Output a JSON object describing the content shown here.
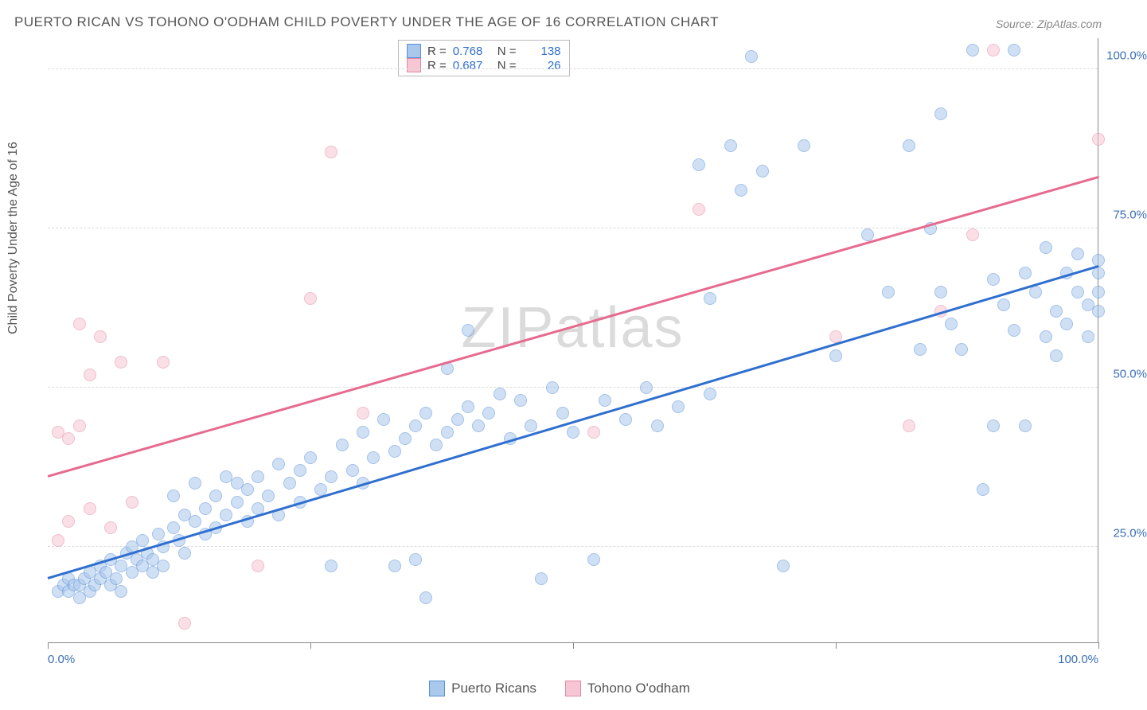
{
  "title": "PUERTO RICAN VS TOHONO O'ODHAM CHILD POVERTY UNDER THE AGE OF 16 CORRELATION CHART",
  "source": "Source: ZipAtlas.com",
  "ylabel": "Child Poverty Under the Age of 16",
  "watermark": "ZIPatlas",
  "chart": {
    "type": "scatter",
    "xlim": [
      0,
      100
    ],
    "ylim": [
      10,
      105
    ],
    "ytick_labels": [
      "25.0%",
      "50.0%",
      "75.0%",
      "100.0%"
    ],
    "ytick_values": [
      25,
      50,
      75,
      100
    ],
    "xtick_values": [
      0,
      25,
      50,
      75,
      100
    ],
    "xtick_labels_left": "0.0%",
    "xtick_labels_right": "100.0%",
    "background_color": "#ffffff",
    "grid_color": "#dddddd",
    "point_radius": 8,
    "point_opacity": 0.55,
    "point_border_width": 1.2
  },
  "series": [
    {
      "name": "Puerto Ricans",
      "color_fill": "#a9c8ec",
      "color_border": "#5a8fd6",
      "R": "0.768",
      "N": "138",
      "trend": {
        "x1": 0,
        "y1": 20,
        "x2": 100,
        "y2": 69,
        "color": "#2f6fd0",
        "width": 2.5
      },
      "points": [
        [
          1,
          18
        ],
        [
          1.5,
          19
        ],
        [
          2,
          18
        ],
        [
          2,
          20
        ],
        [
          2.5,
          19
        ],
        [
          3,
          19
        ],
        [
          3,
          17
        ],
        [
          3.5,
          20
        ],
        [
          4,
          18
        ],
        [
          4,
          21
        ],
        [
          4.5,
          19
        ],
        [
          5,
          20
        ],
        [
          5,
          22
        ],
        [
          5.5,
          21
        ],
        [
          6,
          19
        ],
        [
          6,
          23
        ],
        [
          6.5,
          20
        ],
        [
          7,
          22
        ],
        [
          7,
          18
        ],
        [
          7.5,
          24
        ],
        [
          8,
          21
        ],
        [
          8,
          25
        ],
        [
          8.5,
          23
        ],
        [
          9,
          22
        ],
        [
          9,
          26
        ],
        [
          9.5,
          24
        ],
        [
          10,
          23
        ],
        [
          10,
          21
        ],
        [
          10.5,
          27
        ],
        [
          11,
          25
        ],
        [
          11,
          22
        ],
        [
          12,
          28
        ],
        [
          12,
          33
        ],
        [
          12.5,
          26
        ],
        [
          13,
          30
        ],
        [
          13,
          24
        ],
        [
          14,
          29
        ],
        [
          14,
          35
        ],
        [
          15,
          27
        ],
        [
          15,
          31
        ],
        [
          16,
          33
        ],
        [
          16,
          28
        ],
        [
          17,
          30
        ],
        [
          17,
          36
        ],
        [
          18,
          32
        ],
        [
          18,
          35
        ],
        [
          19,
          34
        ],
        [
          19,
          29
        ],
        [
          20,
          36
        ],
        [
          20,
          31
        ],
        [
          21,
          33
        ],
        [
          22,
          38
        ],
        [
          22,
          30
        ],
        [
          23,
          35
        ],
        [
          24,
          37
        ],
        [
          24,
          32
        ],
        [
          25,
          39
        ],
        [
          26,
          34
        ],
        [
          27,
          36
        ],
        [
          27,
          22
        ],
        [
          28,
          41
        ],
        [
          29,
          37
        ],
        [
          30,
          43
        ],
        [
          30,
          35
        ],
        [
          31,
          39
        ],
        [
          32,
          45
        ],
        [
          33,
          40
        ],
        [
          33,
          22
        ],
        [
          34,
          42
        ],
        [
          35,
          23
        ],
        [
          35,
          44
        ],
        [
          36,
          17
        ],
        [
          36,
          46
        ],
        [
          37,
          41
        ],
        [
          38,
          43
        ],
        [
          38,
          53
        ],
        [
          39,
          45
        ],
        [
          40,
          59
        ],
        [
          40,
          47
        ],
        [
          41,
          44
        ],
        [
          42,
          46
        ],
        [
          43,
          49
        ],
        [
          44,
          42
        ],
        [
          45,
          48
        ],
        [
          46,
          44
        ],
        [
          47,
          20
        ],
        [
          48,
          50
        ],
        [
          49,
          46
        ],
        [
          50,
          43
        ],
        [
          52,
          23
        ],
        [
          53,
          48
        ],
        [
          55,
          45
        ],
        [
          57,
          50
        ],
        [
          58,
          44
        ],
        [
          60,
          47
        ],
        [
          62,
          85
        ],
        [
          63,
          49
        ],
        [
          63,
          64
        ],
        [
          65,
          88
        ],
        [
          66,
          81
        ],
        [
          67,
          102
        ],
        [
          68,
          84
        ],
        [
          70,
          22
        ],
        [
          72,
          88
        ],
        [
          75,
          55
        ],
        [
          78,
          74
        ],
        [
          80,
          65
        ],
        [
          82,
          88
        ],
        [
          83,
          56
        ],
        [
          84,
          75
        ],
        [
          85,
          65
        ],
        [
          85,
          93
        ],
        [
          86,
          60
        ],
        [
          87,
          56
        ],
        [
          88,
          103
        ],
        [
          89,
          34
        ],
        [
          90,
          67
        ],
        [
          90,
          44
        ],
        [
          91,
          63
        ],
        [
          92,
          59
        ],
        [
          92,
          103
        ],
        [
          93,
          44
        ],
        [
          93,
          68
        ],
        [
          94,
          65
        ],
        [
          95,
          58
        ],
        [
          95,
          72
        ],
        [
          96,
          62
        ],
        [
          96,
          55
        ],
        [
          97,
          68
        ],
        [
          97,
          60
        ],
        [
          98,
          65
        ],
        [
          98,
          71
        ],
        [
          99,
          63
        ],
        [
          99,
          58
        ],
        [
          100,
          70
        ],
        [
          100,
          65
        ],
        [
          100,
          62
        ],
        [
          100,
          68
        ]
      ]
    },
    {
      "name": "Tohono O'odham",
      "color_fill": "#f6c6d4",
      "color_border": "#e28aa5",
      "R": "0.687",
      "N": "26",
      "trend": {
        "x1": 0,
        "y1": 36,
        "x2": 100,
        "y2": 83,
        "color": "#e76a8f",
        "width": 2.5
      },
      "points": [
        [
          1,
          43
        ],
        [
          1,
          26
        ],
        [
          2,
          29
        ],
        [
          2,
          42
        ],
        [
          3,
          44
        ],
        [
          3,
          60
        ],
        [
          4,
          31
        ],
        [
          4,
          52
        ],
        [
          5,
          58
        ],
        [
          6,
          28
        ],
        [
          7,
          54
        ],
        [
          8,
          32
        ],
        [
          11,
          54
        ],
        [
          13,
          13
        ],
        [
          20,
          22
        ],
        [
          25,
          64
        ],
        [
          27,
          87
        ],
        [
          30,
          46
        ],
        [
          52,
          43
        ],
        [
          62,
          78
        ],
        [
          75,
          58
        ],
        [
          82,
          44
        ],
        [
          85,
          62
        ],
        [
          88,
          74
        ],
        [
          90,
          103
        ],
        [
          100,
          89
        ]
      ]
    }
  ],
  "legend": {
    "r_label": "R =",
    "n_label": "N ="
  }
}
